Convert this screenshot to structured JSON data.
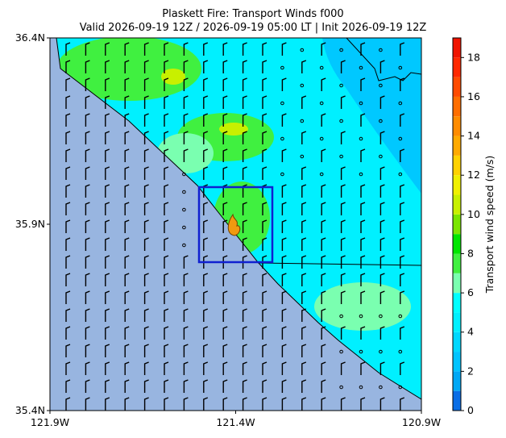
{
  "title": [
    "Plaskett Fire: Transport Winds f000",
    "Valid 2026-09-19 12Z / 2026-09-19 05:00 LT | Init 2026-09-19 12Z"
  ],
  "map": {
    "xlim": [
      -121.9,
      -120.9
    ],
    "ylim": [
      35.4,
      36.4
    ],
    "xticks": [
      {
        "value": -121.9,
        "label": "121.9W"
      },
      {
        "value": -121.4,
        "label": "121.4W"
      },
      {
        "value": -120.9,
        "label": "120.9W"
      }
    ],
    "yticks": [
      {
        "value": 35.4,
        "label": "35.4N"
      },
      {
        "value": 35.9,
        "label": "35.9N"
      },
      {
        "value": 36.4,
        "label": "36.4N"
      }
    ]
  },
  "colorbar": {
    "label": "Transport wind speed (m/s)",
    "lim": [
      0,
      19
    ],
    "ticks": [
      0,
      2,
      4,
      6,
      8,
      10,
      12,
      14,
      16,
      18
    ],
    "levels": [
      0,
      1,
      2,
      3,
      4,
      5,
      6,
      7,
      8,
      9,
      10,
      11,
      12,
      13,
      14,
      15,
      16,
      17,
      18,
      19
    ],
    "colors": [
      "#0a6ee6",
      "#00a8f5",
      "#00c4ff",
      "#00d8ff",
      "#00f0ff",
      "#00ffff",
      "#7affb0",
      "#40f040",
      "#00e600",
      "#7ae600",
      "#c8f000",
      "#f0f000",
      "#ffd200",
      "#ffaa00",
      "#ff8c00",
      "#ff6e00",
      "#ff4b00",
      "#ff2800",
      "#f01400"
    ]
  }
}
